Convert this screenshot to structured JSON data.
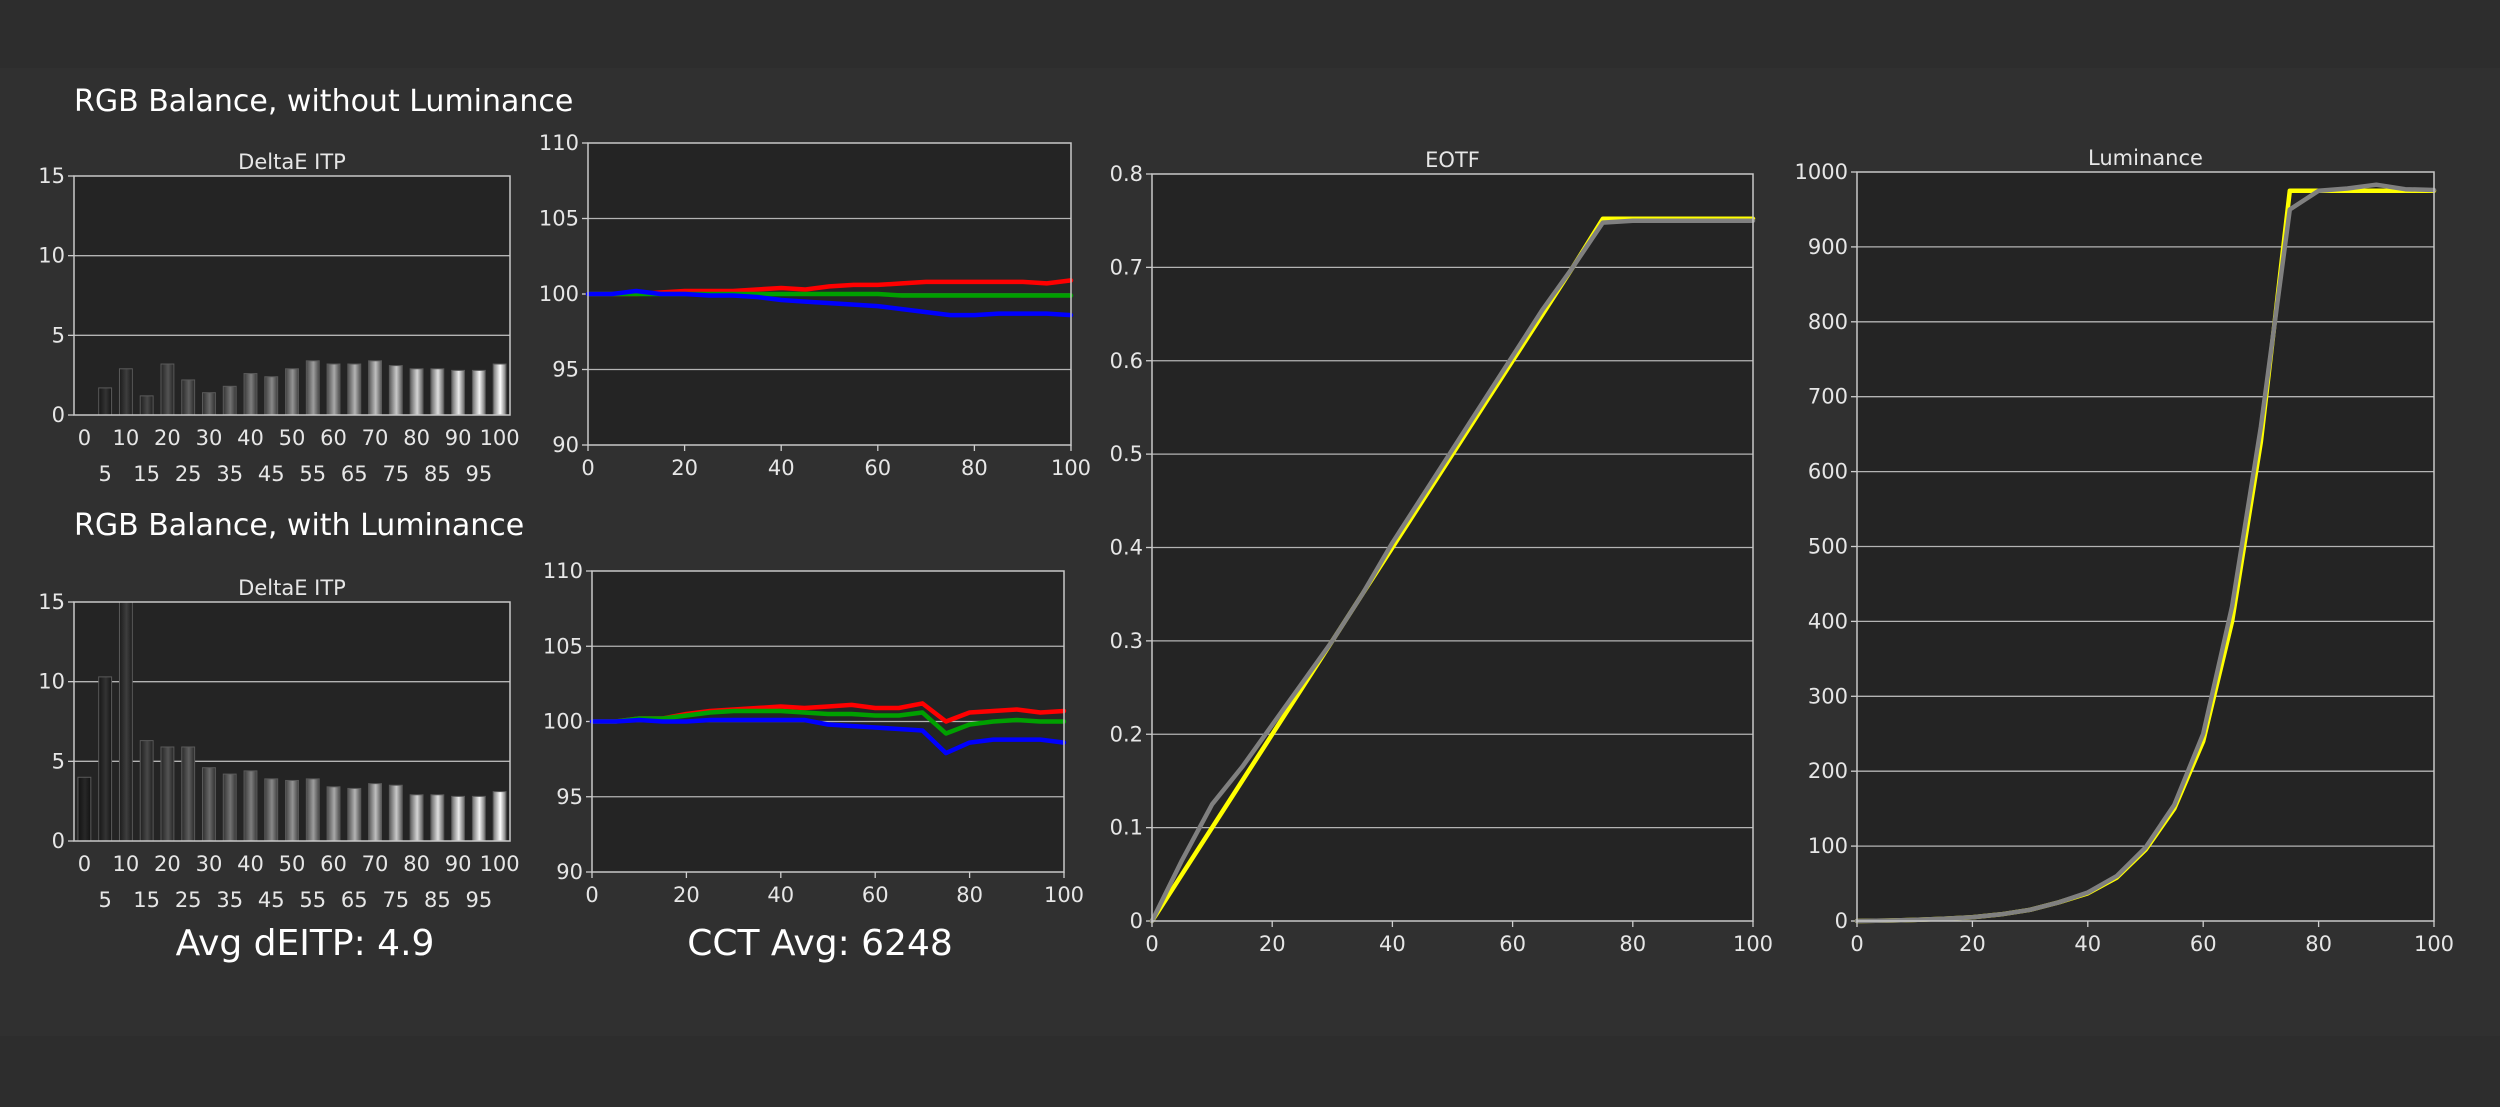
{
  "sections": {
    "without": "RGB Balance, without Luminance",
    "with": "RGB Balance, with Luminance"
  },
  "summary": {
    "avg_deitp": "Avg dEITP: 4.9",
    "cct_avg": "CCT Avg: 6248"
  },
  "chart_data": [
    {
      "id": "deltae-without",
      "type": "bar",
      "title": "DeltaE ITP",
      "categories": [
        "0",
        "5",
        "10",
        "15",
        "20",
        "25",
        "30",
        "35",
        "40",
        "45",
        "50",
        "55",
        "60",
        "65",
        "70",
        "75",
        "80",
        "85",
        "90",
        "95",
        "100"
      ],
      "values": [
        0.0,
        1.7,
        2.9,
        1.2,
        3.2,
        2.2,
        1.4,
        1.8,
        2.6,
        2.4,
        2.9,
        3.4,
        3.2,
        3.2,
        3.4,
        3.1,
        2.9,
        2.9,
        2.8,
        2.8,
        3.2
      ],
      "ylim": [
        0,
        15
      ],
      "yticks": [
        "0",
        "5",
        "10",
        "15"
      ],
      "xticks_top": [
        "0",
        "10",
        "20",
        "30",
        "40",
        "50",
        "60",
        "70",
        "80",
        "90",
        "100"
      ],
      "xticks_bottom": [
        "5",
        "15",
        "25",
        "35",
        "45",
        "55",
        "65",
        "75",
        "85",
        "95"
      ],
      "grid": true
    },
    {
      "id": "rgb-without",
      "type": "line",
      "x": [
        0,
        5,
        10,
        15,
        20,
        25,
        30,
        35,
        40,
        45,
        50,
        55,
        60,
        65,
        70,
        75,
        80,
        85,
        90,
        95,
        100
      ],
      "series": [
        {
          "color": "#ff0000",
          "values": [
            100.0,
            100.0,
            100.0,
            100.1,
            100.2,
            100.2,
            100.2,
            100.3,
            100.4,
            100.3,
            100.5,
            100.6,
            100.6,
            100.7,
            100.8,
            100.8,
            100.8,
            100.8,
            100.8,
            100.7,
            100.9
          ]
        },
        {
          "color": "#00a000",
          "values": [
            100.0,
            100.0,
            100.0,
            100.0,
            100.0,
            100.0,
            100.0,
            100.0,
            100.0,
            100.0,
            100.0,
            100.0,
            100.0,
            99.9,
            99.9,
            99.9,
            99.9,
            99.9,
            99.9,
            99.9,
            99.9
          ]
        },
        {
          "color": "#0000ff",
          "values": [
            100.0,
            100.0,
            100.2,
            100.0,
            100.0,
            99.9,
            99.9,
            99.8,
            99.6,
            99.5,
            99.4,
            99.3,
            99.2,
            99.0,
            98.8,
            98.6,
            98.6,
            98.7,
            98.7,
            98.7,
            98.6
          ]
        }
      ],
      "ylim": [
        90,
        110
      ],
      "yticks": [
        "90",
        "95",
        "100",
        "105",
        "110"
      ],
      "xticks": [
        "0",
        "20",
        "40",
        "60",
        "80",
        "100"
      ],
      "grid": true
    },
    {
      "id": "deltae-with",
      "type": "bar",
      "title": "DeltaE ITP",
      "categories": [
        "0",
        "5",
        "10",
        "15",
        "20",
        "25",
        "30",
        "35",
        "40",
        "45",
        "50",
        "55",
        "60",
        "65",
        "70",
        "75",
        "80",
        "85",
        "90",
        "95",
        "100"
      ],
      "values": [
        4.0,
        10.3,
        15.0,
        6.3,
        5.9,
        5.9,
        4.6,
        4.2,
        4.4,
        3.9,
        3.8,
        3.9,
        3.4,
        3.3,
        3.6,
        3.5,
        2.9,
        2.9,
        2.8,
        2.8,
        3.1
      ],
      "ylim": [
        0,
        15
      ],
      "yticks": [
        "0",
        "5",
        "10",
        "15"
      ],
      "xticks_top": [
        "0",
        "10",
        "20",
        "30",
        "40",
        "50",
        "60",
        "70",
        "80",
        "90",
        "100"
      ],
      "xticks_bottom": [
        "5",
        "15",
        "25",
        "35",
        "45",
        "55",
        "65",
        "75",
        "85",
        "95"
      ],
      "grid": true
    },
    {
      "id": "rgb-with",
      "type": "line",
      "x": [
        0,
        5,
        10,
        15,
        20,
        25,
        30,
        35,
        40,
        45,
        50,
        55,
        60,
        65,
        70,
        75,
        80,
        85,
        90,
        95,
        100
      ],
      "series": [
        {
          "color": "#ff0000",
          "values": [
            100.0,
            100.0,
            100.2,
            100.2,
            100.5,
            100.7,
            100.8,
            100.9,
            101.0,
            100.9,
            101.0,
            101.1,
            100.9,
            100.9,
            101.2,
            100.0,
            100.6,
            100.7,
            100.8,
            100.6,
            100.7
          ]
        },
        {
          "color": "#00a000",
          "values": [
            100.0,
            100.0,
            100.2,
            100.2,
            100.4,
            100.6,
            100.7,
            100.7,
            100.7,
            100.6,
            100.5,
            100.5,
            100.4,
            100.4,
            100.6,
            99.2,
            99.8,
            100.0,
            100.1,
            100.0,
            100.0
          ]
        },
        {
          "color": "#0000ff",
          "values": [
            100.0,
            100.0,
            100.1,
            100.0,
            100.0,
            100.1,
            100.1,
            100.1,
            100.1,
            100.1,
            99.8,
            99.7,
            99.6,
            99.5,
            99.4,
            97.9,
            98.6,
            98.8,
            98.8,
            98.8,
            98.6
          ]
        }
      ],
      "ylim": [
        90,
        110
      ],
      "yticks": [
        "90",
        "95",
        "100",
        "105",
        "110"
      ],
      "xticks": [
        "0",
        "20",
        "40",
        "60",
        "80",
        "100"
      ],
      "grid": true
    },
    {
      "id": "eotf",
      "type": "line",
      "title": "EOTF",
      "x": [
        0,
        5,
        10,
        15,
        20,
        25,
        30,
        35,
        40,
        45,
        50,
        55,
        60,
        65,
        70,
        75,
        80,
        85,
        90,
        95,
        100
      ],
      "series": [
        {
          "color": "#ffff00",
          "values": [
            0.0,
            0.05,
            0.1,
            0.15,
            0.2,
            0.25,
            0.3,
            0.35,
            0.4,
            0.45,
            0.5,
            0.55,
            0.6,
            0.65,
            0.7,
            0.752,
            0.752,
            0.752,
            0.752,
            0.752,
            0.752
          ]
        },
        {
          "color": "#808080",
          "values": [
            0.0,
            0.065,
            0.125,
            0.165,
            0.21,
            0.255,
            0.3,
            0.35,
            0.405,
            0.455,
            0.505,
            0.555,
            0.605,
            0.655,
            0.7,
            0.748,
            0.75,
            0.75,
            0.75,
            0.75,
            0.75
          ]
        }
      ],
      "ylim": [
        0,
        0.8
      ],
      "yticks": [
        "0",
        "0.1",
        "0.2",
        "0.3",
        "0.4",
        "0.5",
        "0.6",
        "0.7",
        "0.8"
      ],
      "xticks": [
        "0",
        "20",
        "40",
        "60",
        "80",
        "100"
      ],
      "grid": true
    },
    {
      "id": "luminance",
      "type": "line",
      "title": "Luminance",
      "x": [
        0,
        5,
        10,
        15,
        20,
        25,
        30,
        35,
        40,
        45,
        50,
        55,
        60,
        65,
        70,
        75,
        80,
        85,
        90,
        95,
        100
      ],
      "series": [
        {
          "color": "#ffff00",
          "values": [
            0,
            0.5,
            1.5,
            3,
            5,
            9,
            15,
            25,
            37,
            58,
            95,
            150,
            240,
            400,
            640,
            975,
            975,
            975,
            975,
            975,
            975
          ]
        },
        {
          "color": "#808080",
          "values": [
            0,
            0.5,
            1.5,
            3,
            5,
            9,
            15,
            25,
            38,
            60,
            98,
            155,
            250,
            420,
            660,
            950,
            975,
            978,
            983,
            977,
            976
          ]
        }
      ],
      "ylim": [
        0,
        1000
      ],
      "yticks": [
        "0",
        "100",
        "200",
        "300",
        "400",
        "500",
        "600",
        "700",
        "800",
        "900",
        "1000"
      ],
      "xticks": [
        "0",
        "20",
        "40",
        "60",
        "80",
        "100"
      ],
      "grid": true
    }
  ]
}
